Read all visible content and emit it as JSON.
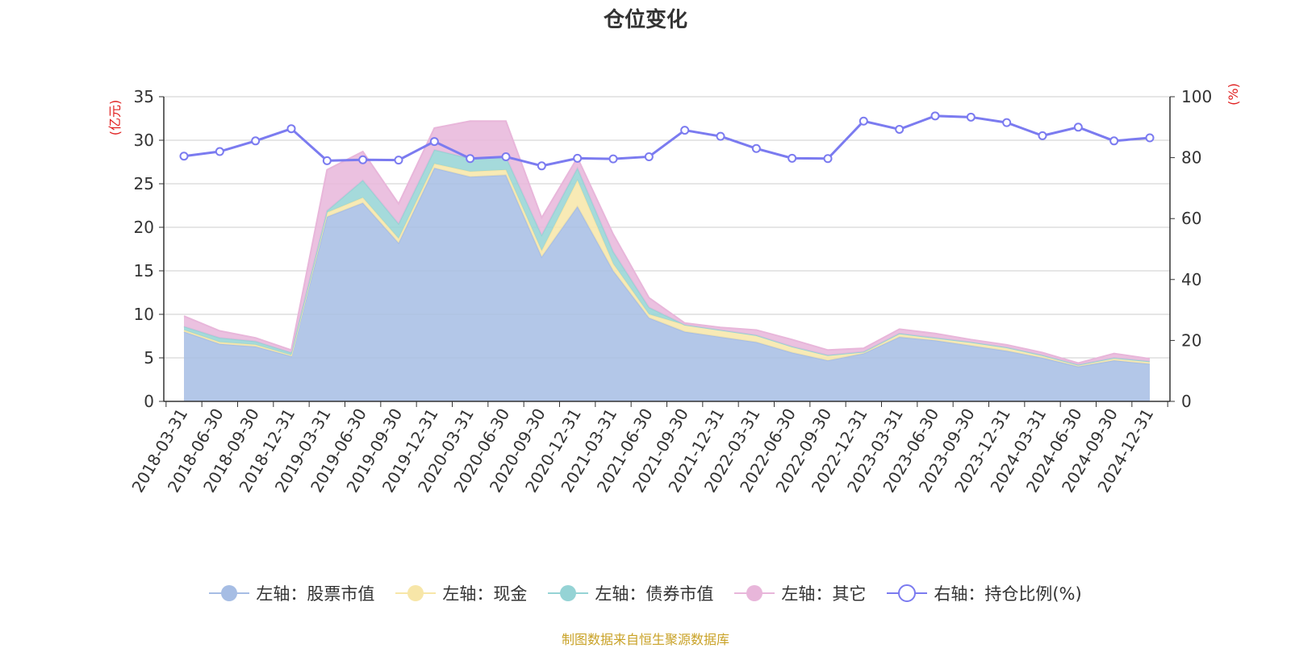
{
  "title": "仓位变化",
  "source_note": "制图数据来自恒生聚源数据库",
  "left_unit": "(亿元)",
  "right_unit": "(%)",
  "colors": {
    "stock": "#a6bde4",
    "cash": "#f7e6a8",
    "bond": "#95d3d5",
    "other": "#e8b6da",
    "ratio": "#7b7bf0"
  },
  "chart_data": {
    "type": "area",
    "title": "仓位变化",
    "x": [
      "2018-03-31",
      "2018-06-30",
      "2018-09-30",
      "2018-12-31",
      "2019-03-31",
      "2019-06-30",
      "2019-09-30",
      "2019-12-31",
      "2020-03-31",
      "2020-06-30",
      "2020-09-30",
      "2020-12-31",
      "2021-03-31",
      "2021-06-30",
      "2021-09-30",
      "2021-12-31",
      "2022-03-31",
      "2022-06-30",
      "2022-09-30",
      "2022-12-31",
      "2023-03-31",
      "2023-06-30",
      "2023-09-30",
      "2023-12-31",
      "2024-03-31",
      "2024-06-30",
      "2024-09-30",
      "2024-12-31"
    ],
    "y_left": {
      "label": "(亿元)",
      "range": [
        0,
        35
      ],
      "ticks": [
        0,
        5,
        10,
        15,
        20,
        25,
        30,
        35
      ]
    },
    "y_right": {
      "label": "(%)",
      "range": [
        0,
        100
      ],
      "ticks": [
        0,
        20,
        40,
        60,
        80,
        100
      ]
    },
    "stacked": true,
    "grid": true,
    "legend_position": "bottom",
    "series": [
      {
        "key": "stock",
        "name": "左轴：股票市值",
        "axis": "left",
        "type": "area",
        "values": [
          8.0,
          6.6,
          6.3,
          5.2,
          21.2,
          22.8,
          18.2,
          26.8,
          25.8,
          26.0,
          16.6,
          22.4,
          15.0,
          9.6,
          8.0,
          7.4,
          6.8,
          5.6,
          4.7,
          5.5,
          7.4,
          7.0,
          6.4,
          5.8,
          5.0,
          4.0,
          4.7,
          4.3
        ]
      },
      {
        "key": "cash",
        "name": "左轴：现金",
        "axis": "left",
        "type": "area",
        "values": [
          0.2,
          0.2,
          0.2,
          0.1,
          0.5,
          0.6,
          0.5,
          0.5,
          0.6,
          0.6,
          0.7,
          3.0,
          0.8,
          0.4,
          0.8,
          0.8,
          0.8,
          0.7,
          0.6,
          0.2,
          0.4,
          0.3,
          0.4,
          0.4,
          0.3,
          0.2,
          0.3,
          0.3
        ]
      },
      {
        "key": "bond",
        "name": "左轴：债券市值",
        "axis": "left",
        "type": "area",
        "values": [
          0.4,
          0.5,
          0.4,
          0.3,
          0.2,
          2.0,
          1.7,
          1.6,
          1.5,
          1.5,
          1.8,
          1.4,
          1.4,
          0.8,
          0.0,
          0.0,
          0.0,
          0.0,
          0.0,
          0.0,
          0.0,
          0.0,
          0.0,
          0.0,
          0.0,
          0.0,
          0.0,
          0.0
        ]
      },
      {
        "key": "other",
        "name": "左轴：其它",
        "axis": "left",
        "type": "area",
        "values": [
          1.2,
          0.8,
          0.4,
          0.3,
          4.7,
          3.3,
          2.3,
          2.5,
          4.3,
          4.1,
          2.0,
          1.2,
          2.0,
          1.1,
          0.2,
          0.3,
          0.6,
          0.8,
          0.6,
          0.4,
          0.5,
          0.5,
          0.3,
          0.3,
          0.3,
          0.2,
          0.5,
          0.3
        ]
      },
      {
        "key": "ratio",
        "name": "右轴：持仓比例(%)",
        "axis": "right",
        "type": "line",
        "values": [
          80.5,
          82.0,
          85.5,
          89.5,
          79.0,
          79.3,
          79.2,
          85.3,
          79.7,
          80.3,
          77.3,
          79.8,
          79.6,
          80.3,
          89.0,
          87.0,
          83.0,
          79.8,
          79.7,
          92.0,
          89.3,
          93.7,
          93.3,
          91.5,
          87.2,
          90.0,
          85.5,
          86.5
        ]
      }
    ]
  }
}
